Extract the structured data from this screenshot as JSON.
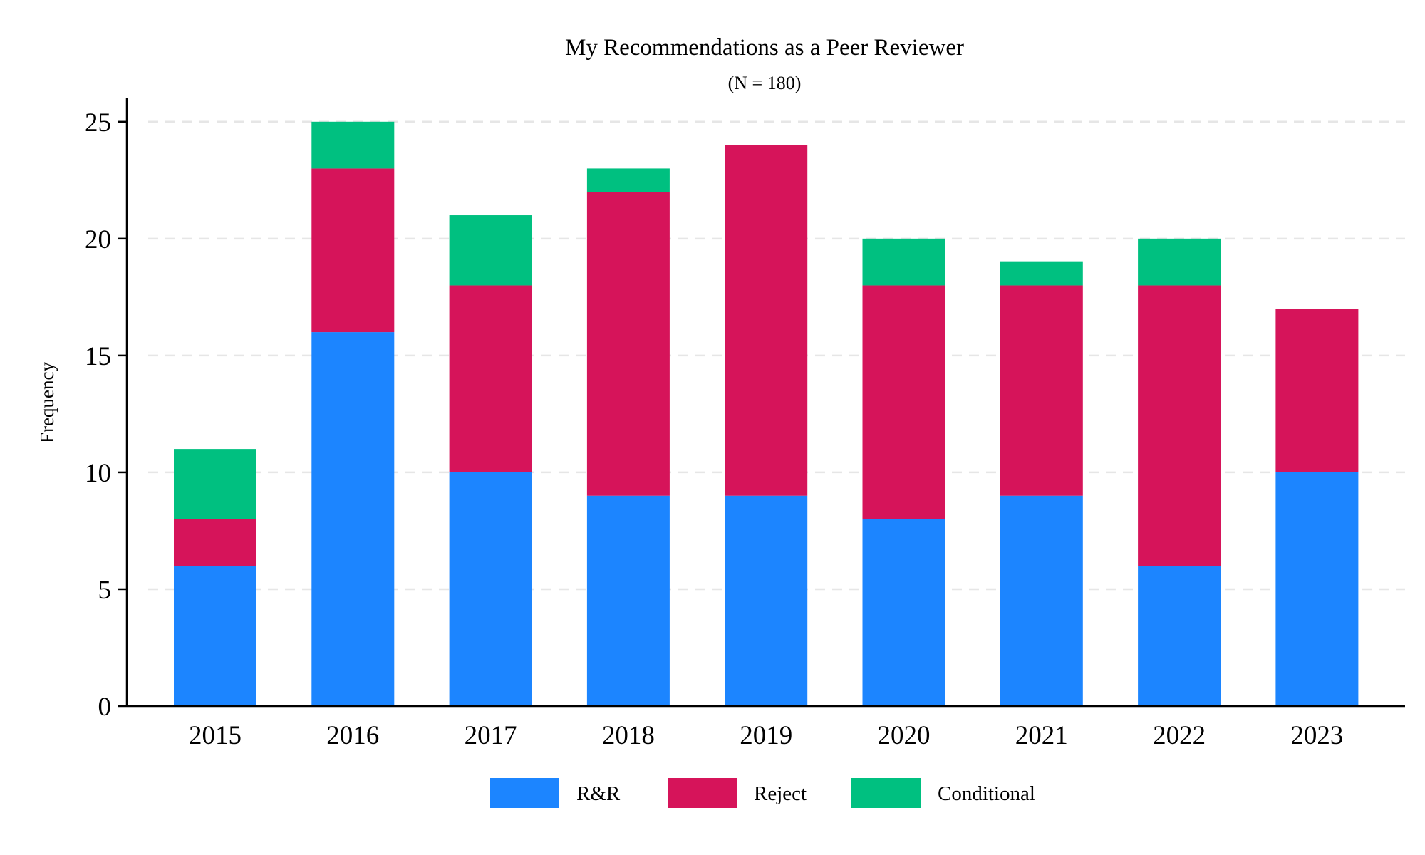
{
  "chart_data": {
    "type": "bar",
    "stacked": true,
    "title": "My Recommendations as a Peer Reviewer",
    "subtitle": "(N = 180)",
    "xlabel": "",
    "ylabel": "Frequency",
    "categories": [
      "2015",
      "2016",
      "2017",
      "2018",
      "2019",
      "2020",
      "2021",
      "2022",
      "2023"
    ],
    "series": [
      {
        "name": "R&R",
        "values": [
          6,
          16,
          10,
          9,
          9,
          8,
          9,
          6,
          10
        ],
        "color": "#1c85ff"
      },
      {
        "name": "Reject",
        "values": [
          2,
          7,
          8,
          13,
          15,
          10,
          9,
          12,
          7
        ],
        "color": "#d6145a"
      },
      {
        "name": "Conditional",
        "values": [
          3,
          2,
          3,
          1,
          0,
          2,
          1,
          2,
          0
        ],
        "color": "#00c080"
      }
    ],
    "ylim": [
      0,
      26
    ],
    "yticks": [
      0,
      5,
      10,
      15,
      20,
      25
    ],
    "grid": "horizontal dashed",
    "legend_position": "bottom"
  }
}
